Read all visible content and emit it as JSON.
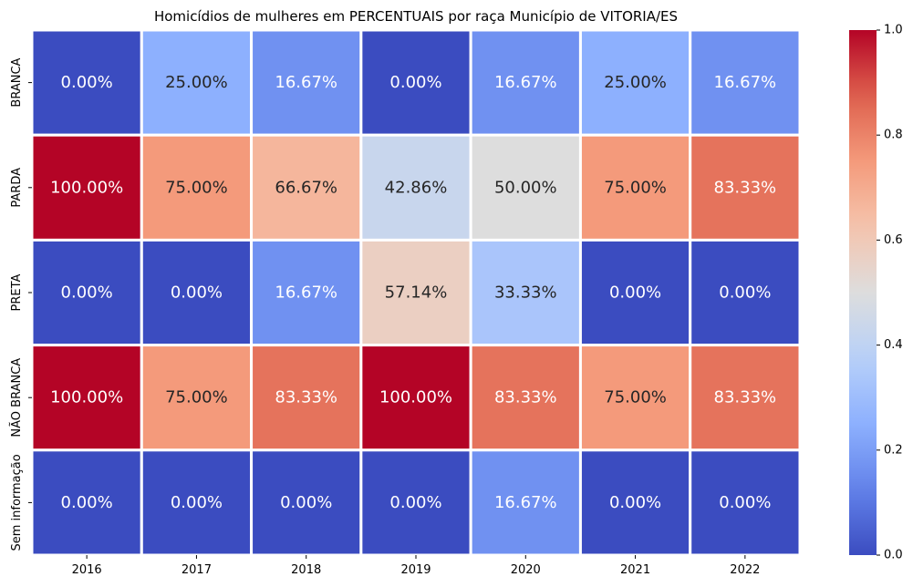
{
  "chart_data": {
    "type": "heatmap",
    "title": "Homicídios de mulheres em PERCENTUAIS por raça Município de VITORIA/ES",
    "x_categories": [
      "2016",
      "2017",
      "2018",
      "2019",
      "2020",
      "2021",
      "2022"
    ],
    "y_categories": [
      "BRANCA",
      "PARDA",
      "PRETA",
      "NÃO BRANCA",
      "Sem informação"
    ],
    "values": [
      [
        0.0,
        0.25,
        0.1667,
        0.0,
        0.1667,
        0.25,
        0.1667
      ],
      [
        1.0,
        0.75,
        0.6667,
        0.4286,
        0.5,
        0.75,
        0.8333
      ],
      [
        0.0,
        0.0,
        0.1667,
        0.5714,
        0.3333,
        0.0,
        0.0
      ],
      [
        1.0,
        0.75,
        0.8333,
        1.0,
        0.8333,
        0.75,
        0.8333
      ],
      [
        0.0,
        0.0,
        0.0,
        0.0,
        0.1667,
        0.0,
        0.0
      ]
    ],
    "labels": [
      [
        "0.00%",
        "25.00%",
        "16.67%",
        "0.00%",
        "16.67%",
        "25.00%",
        "16.67%"
      ],
      [
        "100.00%",
        "75.00%",
        "66.67%",
        "42.86%",
        "50.00%",
        "75.00%",
        "83.33%"
      ],
      [
        "0.00%",
        "0.00%",
        "16.67%",
        "57.14%",
        "33.33%",
        "0.00%",
        "0.00%"
      ],
      [
        "100.00%",
        "75.00%",
        "83.33%",
        "100.00%",
        "83.33%",
        "75.00%",
        "83.33%"
      ],
      [
        "0.00%",
        "0.00%",
        "0.00%",
        "0.00%",
        "16.67%",
        "0.00%",
        "0.00%"
      ]
    ],
    "colormap": "coolwarm",
    "vmin": 0.0,
    "vmax": 1.0,
    "colorbar_ticks": [
      "0.0",
      "0.2",
      "0.4",
      "0.6",
      "0.8",
      "1.0"
    ],
    "grid": true,
    "cell_border_color": "#ffffff"
  }
}
